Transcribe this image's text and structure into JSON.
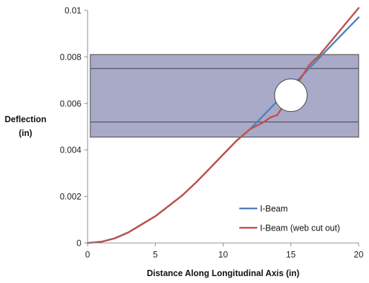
{
  "chart_data": {
    "type": "line",
    "title": "",
    "xlabel": "Distance Along Longitudinal Axis (in)",
    "ylabel_lines": [
      "Deflection",
      "(in)"
    ],
    "xlim": [
      0,
      20
    ],
    "ylim": [
      0,
      0.01
    ],
    "x_ticks": [
      0,
      5,
      10,
      15,
      20
    ],
    "x_tick_labels": [
      "0",
      "5",
      "10",
      "15",
      "20"
    ],
    "y_ticks": [
      0,
      0.002,
      0.004,
      0.006,
      0.008,
      0.01
    ],
    "y_tick_labels": [
      "0",
      "0.002",
      "0.004",
      "0.006",
      "0.008",
      "0.01"
    ],
    "grid": false,
    "legend_position": "bottom-right",
    "series": [
      {
        "name": "I-Beam",
        "color": "#4f81bd",
        "x": [
          0,
          1,
          2,
          3,
          4,
          5,
          6,
          7,
          8,
          9,
          10,
          11,
          12,
          13,
          14,
          15,
          16,
          17,
          18,
          19,
          20
        ],
        "y": [
          0,
          5e-05,
          0.0002,
          0.00045,
          0.0008,
          0.00115,
          0.0016,
          0.00205,
          0.0026,
          0.0032,
          0.0038,
          0.0044,
          0.0049,
          0.0055,
          0.0061,
          0.0067,
          0.0073,
          0.0079,
          0.0085,
          0.0091,
          0.0097
        ]
      },
      {
        "name": "I-Beam (web cut out)",
        "color": "#c0504d",
        "x": [
          0,
          1,
          2,
          3,
          4,
          5,
          6,
          7,
          8,
          9,
          10,
          11,
          12,
          13,
          13.5,
          14,
          16.3,
          16.6,
          17,
          18,
          19,
          20
        ],
        "y": [
          0,
          5e-05,
          0.0002,
          0.00045,
          0.0008,
          0.00115,
          0.0016,
          0.00205,
          0.0026,
          0.0032,
          0.0038,
          0.0044,
          0.0049,
          0.0052,
          0.0054,
          0.0055,
          0.0076,
          0.0078,
          0.008,
          0.0087,
          0.0094,
          0.0101
        ]
      }
    ],
    "overlay": {
      "flange_band": {
        "y_top": 0.0081,
        "y_bottom": 0.00455,
        "x_from": 0.2,
        "x_to": 20,
        "color": "#a9a9c8"
      },
      "web_lines": [
        0.0075,
        0.0052
      ],
      "hole": {
        "cx": 15,
        "cy": 0.00635,
        "r": 0.0007
      }
    }
  }
}
